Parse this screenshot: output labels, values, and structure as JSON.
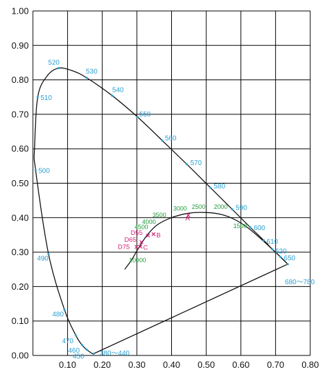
{
  "chart_data": {
    "type": "line",
    "title": "",
    "xlabel": "",
    "ylabel": "",
    "xlim": [
      0,
      0.8
    ],
    "ylim": [
      0,
      1.0
    ],
    "grid": true,
    "x_ticks": [
      "0.10",
      "0.20",
      "0.30",
      "0.40",
      "0.50",
      "0.60",
      "0.70",
      "0.80"
    ],
    "y_ticks": [
      "0.00",
      "0.10",
      "0.20",
      "0.30",
      "0.40",
      "0.50",
      "0.60",
      "0.70",
      "0.80",
      "0.90",
      "1.00"
    ],
    "colors": {
      "spectral_label": "#2a9fd0",
      "cct_label": "#1f9a3a",
      "illuminant": "#d0247a",
      "curve": "#111111",
      "grid": "#000000"
    },
    "spectral_locus": [
      {
        "x": 0.175,
        "y": 0.005
      },
      {
        "x": 0.174,
        "y": 0.005
      },
      {
        "x": 0.172,
        "y": 0.005
      },
      {
        "x": 0.166,
        "y": 0.009
      },
      {
        "x": 0.155,
        "y": 0.017
      },
      {
        "x": 0.142,
        "y": 0.03
      },
      {
        "x": 0.124,
        "y": 0.058
      },
      {
        "x": 0.091,
        "y": 0.133
      },
      {
        "x": 0.045,
        "y": 0.295
      },
      {
        "x": 0.008,
        "y": 0.538
      },
      {
        "x": 0.005,
        "y": 0.6
      },
      {
        "x": 0.014,
        "y": 0.75
      },
      {
        "x": 0.04,
        "y": 0.81
      },
      {
        "x": 0.074,
        "y": 0.834
      },
      {
        "x": 0.115,
        "y": 0.826
      },
      {
        "x": 0.155,
        "y": 0.806
      },
      {
        "x": 0.229,
        "y": 0.754
      },
      {
        "x": 0.302,
        "y": 0.692
      },
      {
        "x": 0.373,
        "y": 0.624
      },
      {
        "x": 0.444,
        "y": 0.555
      },
      {
        "x": 0.512,
        "y": 0.487
      },
      {
        "x": 0.575,
        "y": 0.424
      },
      {
        "x": 0.627,
        "y": 0.372
      },
      {
        "x": 0.666,
        "y": 0.334
      },
      {
        "x": 0.691,
        "y": 0.308
      },
      {
        "x": 0.714,
        "y": 0.286
      },
      {
        "x": 0.735,
        "y": 0.265
      }
    ],
    "purple_line": [
      {
        "x": 0.735,
        "y": 0.265
      },
      {
        "x": 0.175,
        "y": 0.005
      }
    ],
    "planckian_locus": [
      {
        "x": 0.265,
        "y": 0.25
      },
      {
        "x": 0.285,
        "y": 0.278
      },
      {
        "x": 0.305,
        "y": 0.312
      },
      {
        "x": 0.33,
        "y": 0.35
      },
      {
        "x": 0.36,
        "y": 0.38
      },
      {
        "x": 0.4,
        "y": 0.4
      },
      {
        "x": 0.45,
        "y": 0.413
      },
      {
        "x": 0.5,
        "y": 0.415
      },
      {
        "x": 0.54,
        "y": 0.41
      },
      {
        "x": 0.575,
        "y": 0.398
      },
      {
        "x": 0.61,
        "y": 0.378
      },
      {
        "x": 0.645,
        "y": 0.35
      },
      {
        "x": 0.68,
        "y": 0.318
      },
      {
        "x": 0.71,
        "y": 0.29
      },
      {
        "x": 0.735,
        "y": 0.265
      }
    ],
    "wavelength_labels": [
      {
        "text": "520",
        "x": 0.074,
        "y": 0.834,
        "dx": -0.03,
        "dy": 0.01
      },
      {
        "text": "530",
        "x": 0.155,
        "y": 0.806,
        "dx": -0.002,
        "dy": 0.012
      },
      {
        "text": "540",
        "x": 0.229,
        "y": 0.754,
        "dx": 0.0,
        "dy": 0.01
      },
      {
        "text": "550",
        "x": 0.302,
        "y": 0.692,
        "dx": 0.005,
        "dy": 0.002
      },
      {
        "text": "560",
        "x": 0.373,
        "y": 0.624,
        "dx": 0.008,
        "dy": 0.0
      },
      {
        "text": "570",
        "x": 0.444,
        "y": 0.555,
        "dx": 0.01,
        "dy": -0.002
      },
      {
        "text": "580",
        "x": 0.512,
        "y": 0.487,
        "dx": 0.01,
        "dy": -0.002
      },
      {
        "text": "590",
        "x": 0.575,
        "y": 0.424,
        "dx": 0.01,
        "dy": -0.002
      },
      {
        "text": "600",
        "x": 0.627,
        "y": 0.372,
        "dx": 0.01,
        "dy": -0.008
      },
      {
        "text": "610",
        "x": 0.666,
        "y": 0.334,
        "dx": 0.008,
        "dy": -0.01
      },
      {
        "text": "620",
        "x": 0.691,
        "y": 0.308,
        "dx": 0.008,
        "dy": -0.012
      },
      {
        "text": "650",
        "x": 0.714,
        "y": 0.286,
        "dx": 0.01,
        "dy": -0.01
      },
      {
        "text": "680～780",
        "x": 0.735,
        "y": 0.265,
        "dx": -0.008,
        "dy": -0.058
      },
      {
        "text": "510",
        "x": 0.014,
        "y": 0.75,
        "dx": 0.008,
        "dy": -0.008
      },
      {
        "text": "500",
        "x": 0.008,
        "y": 0.538,
        "dx": 0.008,
        "dy": -0.008
      },
      {
        "text": "490",
        "x": 0.045,
        "y": 0.295,
        "dx": -0.033,
        "dy": -0.02
      },
      {
        "text": "480",
        "x": 0.091,
        "y": 0.133,
        "dx": -0.035,
        "dy": -0.02
      },
      {
        "text": "470",
        "x": 0.124,
        "y": 0.058,
        "dx": -0.04,
        "dy": -0.022
      },
      {
        "text": "460",
        "x": 0.142,
        "y": 0.03,
        "dx": -0.04,
        "dy": -0.022
      },
      {
        "text": "450",
        "x": 0.155,
        "y": 0.017,
        "dx": -0.04,
        "dy": -0.026
      },
      {
        "text": "380～440",
        "x": 0.175,
        "y": 0.005,
        "dx": 0.018,
        "dy": -0.005
      }
    ],
    "cct_labels": [
      {
        "text": "3000",
        "x": 0.405,
        "y": 0.42
      },
      {
        "text": "2500",
        "x": 0.458,
        "y": 0.425
      },
      {
        "text": "2000",
        "x": 0.522,
        "y": 0.425
      },
      {
        "text": "1500",
        "x": 0.578,
        "y": 0.37
      },
      {
        "text": "3500",
        "x": 0.345,
        "y": 0.402
      },
      {
        "text": "4000",
        "x": 0.315,
        "y": 0.382
      },
      {
        "text": "4500",
        "x": 0.293,
        "y": 0.367
      },
      {
        "text": "10000",
        "x": 0.277,
        "y": 0.27
      }
    ],
    "illuminants": [
      {
        "text": "A",
        "x": 0.448,
        "y": 0.407,
        "lx": 0.44,
        "ly": 0.392
      },
      {
        "text": "B",
        "x": 0.348,
        "y": 0.352,
        "lx": 0.356,
        "ly": 0.343
      },
      {
        "text": "C",
        "x": 0.31,
        "y": 0.316,
        "lx": 0.318,
        "ly": 0.307
      },
      {
        "text": "D55",
        "x": 0.332,
        "y": 0.348,
        "lx": 0.282,
        "ly": 0.35
      },
      {
        "text": "D65",
        "x": 0.313,
        "y": 0.329,
        "lx": 0.264,
        "ly": 0.33
      },
      {
        "text": "D75",
        "x": 0.299,
        "y": 0.315,
        "lx": 0.245,
        "ly": 0.309
      }
    ]
  }
}
